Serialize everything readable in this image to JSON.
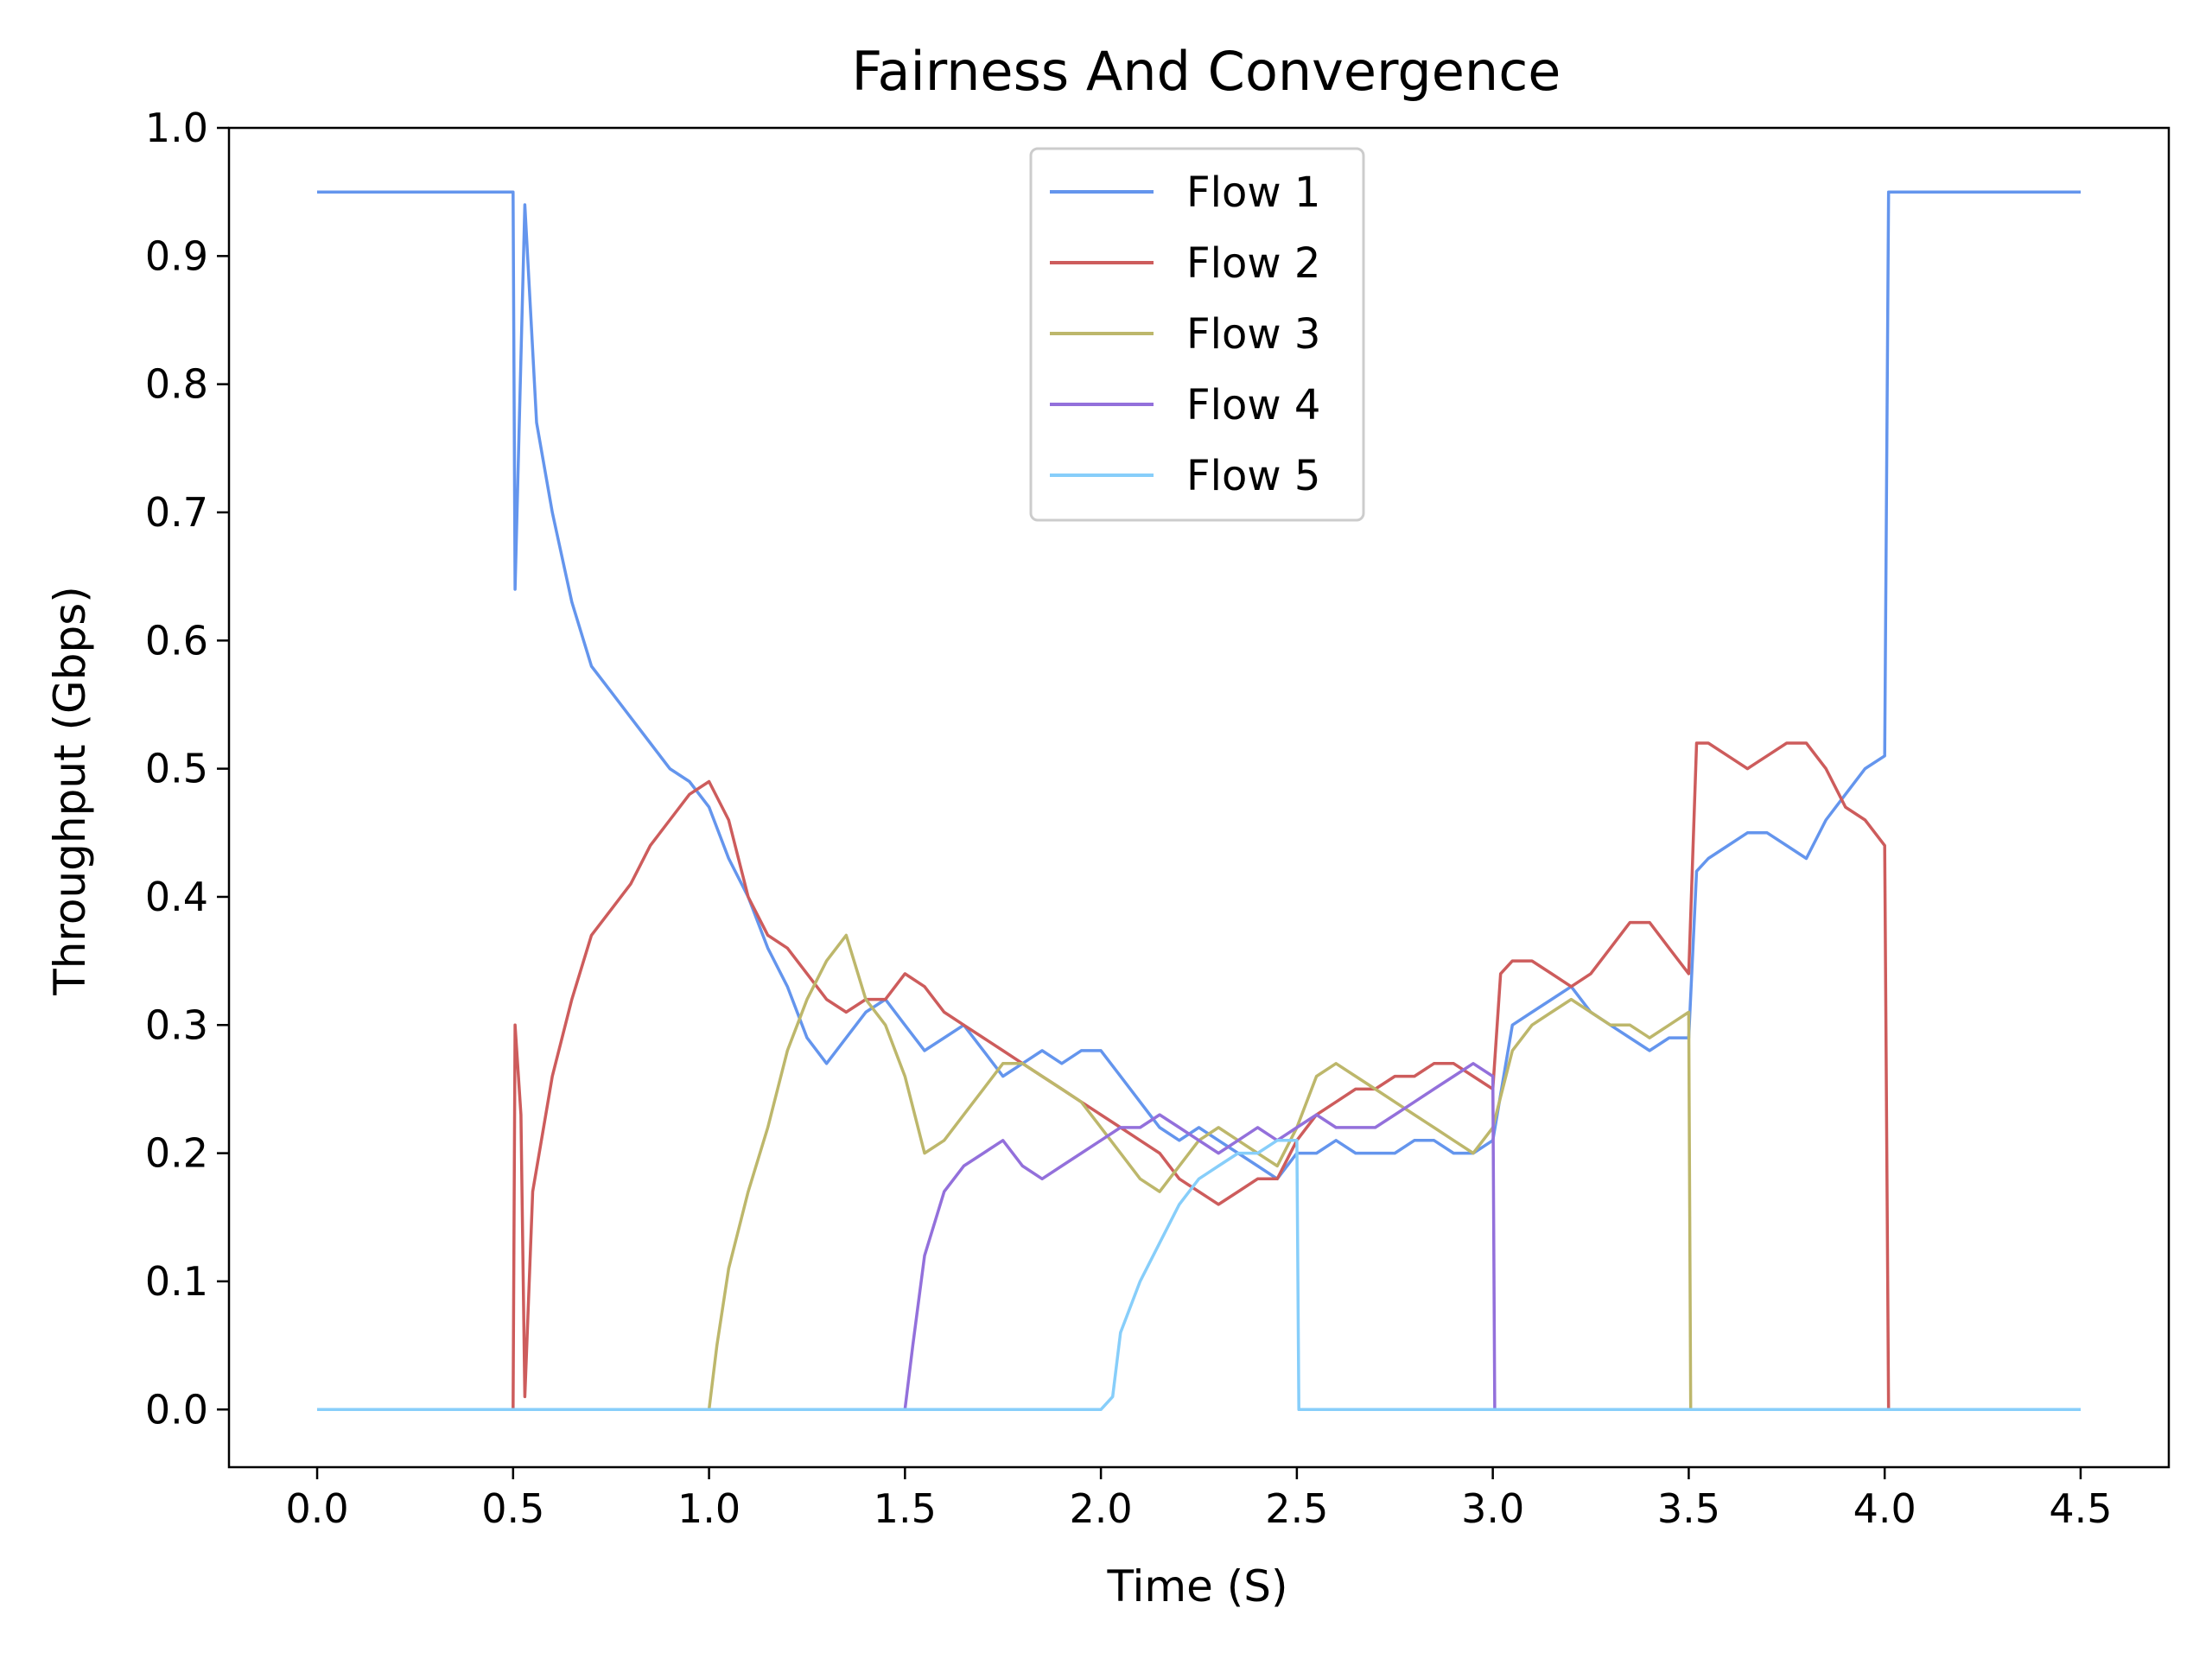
{
  "chart_data": {
    "type": "line",
    "title": "Fairness And Convergence",
    "xlabel": "Time (S)",
    "ylabel": "Throughput (Gbps)",
    "xlim": [
      -0.225,
      4.725
    ],
    "ylim": [
      -0.045,
      1.0
    ],
    "xticks": [
      "0.0",
      "0.5",
      "1.0",
      "1.5",
      "2.0",
      "2.5",
      "3.0",
      "3.5",
      "4.0",
      "4.5"
    ],
    "yticks": [
      "0.0",
      "0.1",
      "0.2",
      "0.3",
      "0.4",
      "0.5",
      "0.6",
      "0.7",
      "0.8",
      "0.9",
      "1.0"
    ],
    "grid": false,
    "legend_position": "top-center",
    "series": [
      {
        "name": "Flow 1",
        "color": "#6495ED",
        "points": [
          [
            0.0,
            0.95
          ],
          [
            0.5,
            0.95
          ],
          [
            0.505,
            0.64
          ],
          [
            0.53,
            0.94
          ],
          [
            0.56,
            0.77
          ],
          [
            0.6,
            0.7
          ],
          [
            0.65,
            0.63
          ],
          [
            0.7,
            0.58
          ],
          [
            0.75,
            0.56
          ],
          [
            0.8,
            0.54
          ],
          [
            0.85,
            0.52
          ],
          [
            0.9,
            0.5
          ],
          [
            0.95,
            0.49
          ],
          [
            1.0,
            0.47
          ],
          [
            1.05,
            0.43
          ],
          [
            1.1,
            0.4
          ],
          [
            1.15,
            0.36
          ],
          [
            1.2,
            0.33
          ],
          [
            1.25,
            0.29
          ],
          [
            1.3,
            0.27
          ],
          [
            1.35,
            0.29
          ],
          [
            1.4,
            0.31
          ],
          [
            1.45,
            0.32
          ],
          [
            1.5,
            0.3
          ],
          [
            1.55,
            0.28
          ],
          [
            1.6,
            0.29
          ],
          [
            1.65,
            0.3
          ],
          [
            1.7,
            0.28
          ],
          [
            1.75,
            0.26
          ],
          [
            1.8,
            0.27
          ],
          [
            1.85,
            0.28
          ],
          [
            1.9,
            0.27
          ],
          [
            1.95,
            0.28
          ],
          [
            2.0,
            0.28
          ],
          [
            2.05,
            0.26
          ],
          [
            2.1,
            0.24
          ],
          [
            2.15,
            0.22
          ],
          [
            2.2,
            0.21
          ],
          [
            2.25,
            0.22
          ],
          [
            2.3,
            0.21
          ],
          [
            2.35,
            0.2
          ],
          [
            2.4,
            0.19
          ],
          [
            2.45,
            0.18
          ],
          [
            2.5,
            0.2
          ],
          [
            2.55,
            0.2
          ],
          [
            2.6,
            0.21
          ],
          [
            2.65,
            0.2
          ],
          [
            2.7,
            0.2
          ],
          [
            2.75,
            0.2
          ],
          [
            2.8,
            0.21
          ],
          [
            2.85,
            0.21
          ],
          [
            2.9,
            0.2
          ],
          [
            2.95,
            0.2
          ],
          [
            3.0,
            0.21
          ],
          [
            3.05,
            0.3
          ],
          [
            3.1,
            0.31
          ],
          [
            3.15,
            0.32
          ],
          [
            3.2,
            0.33
          ],
          [
            3.25,
            0.31
          ],
          [
            3.3,
            0.3
          ],
          [
            3.35,
            0.29
          ],
          [
            3.4,
            0.28
          ],
          [
            3.45,
            0.29
          ],
          [
            3.5,
            0.29
          ],
          [
            3.52,
            0.42
          ],
          [
            3.55,
            0.43
          ],
          [
            3.6,
            0.44
          ],
          [
            3.65,
            0.45
          ],
          [
            3.7,
            0.45
          ],
          [
            3.75,
            0.44
          ],
          [
            3.8,
            0.43
          ],
          [
            3.85,
            0.46
          ],
          [
            3.9,
            0.48
          ],
          [
            3.95,
            0.5
          ],
          [
            4.0,
            0.51
          ],
          [
            4.01,
            0.95
          ],
          [
            4.5,
            0.95
          ]
        ]
      },
      {
        "name": "Flow 2",
        "color": "#CD5C5C",
        "points": [
          [
            0.0,
            0.0
          ],
          [
            0.5,
            0.0
          ],
          [
            0.505,
            0.3
          ],
          [
            0.52,
            0.23
          ],
          [
            0.53,
            0.01
          ],
          [
            0.55,
            0.17
          ],
          [
            0.6,
            0.26
          ],
          [
            0.65,
            0.32
          ],
          [
            0.7,
            0.37
          ],
          [
            0.75,
            0.39
          ],
          [
            0.8,
            0.41
          ],
          [
            0.85,
            0.44
          ],
          [
            0.9,
            0.46
          ],
          [
            0.95,
            0.48
          ],
          [
            1.0,
            0.49
          ],
          [
            1.05,
            0.46
          ],
          [
            1.1,
            0.4
          ],
          [
            1.15,
            0.37
          ],
          [
            1.2,
            0.36
          ],
          [
            1.25,
            0.34
          ],
          [
            1.3,
            0.32
          ],
          [
            1.35,
            0.31
          ],
          [
            1.4,
            0.32
          ],
          [
            1.45,
            0.32
          ],
          [
            1.5,
            0.34
          ],
          [
            1.55,
            0.33
          ],
          [
            1.6,
            0.31
          ],
          [
            1.65,
            0.3
          ],
          [
            1.7,
            0.29
          ],
          [
            1.75,
            0.28
          ],
          [
            1.8,
            0.27
          ],
          [
            1.85,
            0.26
          ],
          [
            1.9,
            0.25
          ],
          [
            1.95,
            0.24
          ],
          [
            2.0,
            0.23
          ],
          [
            2.05,
            0.22
          ],
          [
            2.1,
            0.21
          ],
          [
            2.15,
            0.2
          ],
          [
            2.2,
            0.18
          ],
          [
            2.25,
            0.17
          ],
          [
            2.3,
            0.16
          ],
          [
            2.35,
            0.17
          ],
          [
            2.4,
            0.18
          ],
          [
            2.45,
            0.18
          ],
          [
            2.5,
            0.21
          ],
          [
            2.55,
            0.23
          ],
          [
            2.6,
            0.24
          ],
          [
            2.65,
            0.25
          ],
          [
            2.7,
            0.25
          ],
          [
            2.75,
            0.26
          ],
          [
            2.8,
            0.26
          ],
          [
            2.85,
            0.27
          ],
          [
            2.9,
            0.27
          ],
          [
            2.95,
            0.26
          ],
          [
            3.0,
            0.25
          ],
          [
            3.02,
            0.34
          ],
          [
            3.05,
            0.35
          ],
          [
            3.1,
            0.35
          ],
          [
            3.15,
            0.34
          ],
          [
            3.2,
            0.33
          ],
          [
            3.25,
            0.34
          ],
          [
            3.3,
            0.36
          ],
          [
            3.35,
            0.38
          ],
          [
            3.4,
            0.38
          ],
          [
            3.45,
            0.36
          ],
          [
            3.5,
            0.34
          ],
          [
            3.52,
            0.52
          ],
          [
            3.55,
            0.52
          ],
          [
            3.6,
            0.51
          ],
          [
            3.65,
            0.5
          ],
          [
            3.7,
            0.51
          ],
          [
            3.75,
            0.52
          ],
          [
            3.8,
            0.52
          ],
          [
            3.85,
            0.5
          ],
          [
            3.9,
            0.47
          ],
          [
            3.95,
            0.46
          ],
          [
            4.0,
            0.44
          ],
          [
            4.01,
            0.0
          ],
          [
            4.5,
            0.0
          ]
        ]
      },
      {
        "name": "Flow 3",
        "color": "#BDB76B",
        "points": [
          [
            0.0,
            0.0
          ],
          [
            1.0,
            0.0
          ],
          [
            1.02,
            0.05
          ],
          [
            1.05,
            0.11
          ],
          [
            1.1,
            0.17
          ],
          [
            1.15,
            0.22
          ],
          [
            1.2,
            0.28
          ],
          [
            1.25,
            0.32
          ],
          [
            1.3,
            0.35
          ],
          [
            1.35,
            0.37
          ],
          [
            1.4,
            0.32
          ],
          [
            1.45,
            0.3
          ],
          [
            1.5,
            0.26
          ],
          [
            1.55,
            0.2
          ],
          [
            1.6,
            0.21
          ],
          [
            1.65,
            0.23
          ],
          [
            1.7,
            0.25
          ],
          [
            1.75,
            0.27
          ],
          [
            1.8,
            0.27
          ],
          [
            1.85,
            0.26
          ],
          [
            1.9,
            0.25
          ],
          [
            1.95,
            0.24
          ],
          [
            2.0,
            0.22
          ],
          [
            2.05,
            0.2
          ],
          [
            2.1,
            0.18
          ],
          [
            2.15,
            0.17
          ],
          [
            2.2,
            0.19
          ],
          [
            2.25,
            0.21
          ],
          [
            2.3,
            0.22
          ],
          [
            2.35,
            0.21
          ],
          [
            2.4,
            0.2
          ],
          [
            2.45,
            0.19
          ],
          [
            2.5,
            0.22
          ],
          [
            2.55,
            0.26
          ],
          [
            2.6,
            0.27
          ],
          [
            2.65,
            0.26
          ],
          [
            2.7,
            0.25
          ],
          [
            2.75,
            0.24
          ],
          [
            2.8,
            0.23
          ],
          [
            2.85,
            0.22
          ],
          [
            2.9,
            0.21
          ],
          [
            2.95,
            0.2
          ],
          [
            3.0,
            0.22
          ],
          [
            3.05,
            0.28
          ],
          [
            3.1,
            0.3
          ],
          [
            3.15,
            0.31
          ],
          [
            3.2,
            0.32
          ],
          [
            3.25,
            0.31
          ],
          [
            3.3,
            0.3
          ],
          [
            3.35,
            0.3
          ],
          [
            3.4,
            0.29
          ],
          [
            3.45,
            0.3
          ],
          [
            3.5,
            0.31
          ],
          [
            3.505,
            0.0
          ],
          [
            4.5,
            0.0
          ]
        ]
      },
      {
        "name": "Flow 4",
        "color": "#9370DB",
        "points": [
          [
            0.0,
            0.0
          ],
          [
            1.5,
            0.0
          ],
          [
            1.52,
            0.05
          ],
          [
            1.55,
            0.12
          ],
          [
            1.6,
            0.17
          ],
          [
            1.65,
            0.19
          ],
          [
            1.7,
            0.2
          ],
          [
            1.75,
            0.21
          ],
          [
            1.8,
            0.19
          ],
          [
            1.85,
            0.18
          ],
          [
            1.9,
            0.19
          ],
          [
            1.95,
            0.2
          ],
          [
            2.0,
            0.21
          ],
          [
            2.05,
            0.22
          ],
          [
            2.1,
            0.22
          ],
          [
            2.15,
            0.23
          ],
          [
            2.2,
            0.22
          ],
          [
            2.25,
            0.21
          ],
          [
            2.3,
            0.2
          ],
          [
            2.35,
            0.21
          ],
          [
            2.4,
            0.22
          ],
          [
            2.45,
            0.21
          ],
          [
            2.5,
            0.22
          ],
          [
            2.55,
            0.23
          ],
          [
            2.6,
            0.22
          ],
          [
            2.65,
            0.22
          ],
          [
            2.7,
            0.22
          ],
          [
            2.75,
            0.23
          ],
          [
            2.8,
            0.24
          ],
          [
            2.85,
            0.25
          ],
          [
            2.9,
            0.26
          ],
          [
            2.95,
            0.27
          ],
          [
            3.0,
            0.26
          ],
          [
            3.005,
            0.0
          ],
          [
            4.5,
            0.0
          ]
        ]
      },
      {
        "name": "Flow 5",
        "color": "#87CEFA",
        "points": [
          [
            0.0,
            0.0
          ],
          [
            2.0,
            0.0
          ],
          [
            2.03,
            0.01
          ],
          [
            2.05,
            0.06
          ],
          [
            2.1,
            0.1
          ],
          [
            2.15,
            0.13
          ],
          [
            2.2,
            0.16
          ],
          [
            2.25,
            0.18
          ],
          [
            2.3,
            0.19
          ],
          [
            2.35,
            0.2
          ],
          [
            2.4,
            0.2
          ],
          [
            2.45,
            0.21
          ],
          [
            2.5,
            0.21
          ],
          [
            2.505,
            0.0
          ],
          [
            4.5,
            0.0
          ]
        ]
      }
    ]
  }
}
